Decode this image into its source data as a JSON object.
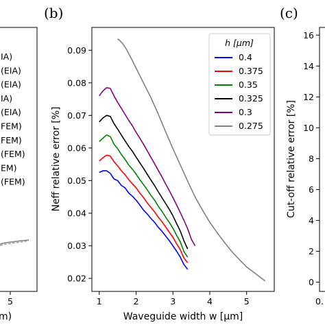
{
  "panels": {
    "left_label": "",
    "center_label": "(b)",
    "right_label": "(c)"
  },
  "left_fragment": {
    "legend_entries": [
      "IA)",
      "(EIA)",
      "(EIA)",
      "IA)",
      "(EIA)",
      "FEM)",
      "FEM)",
      "(FEM)",
      "EM)",
      "(FEM)"
    ],
    "xticks": [
      "5"
    ],
    "xlabel_fragment": "m)"
  },
  "right_fragment": {
    "ylabel": "Cut-off relative error [%]",
    "yticks": [
      "0",
      "2",
      "4",
      "6",
      "8",
      "10",
      "12",
      "14",
      "16"
    ],
    "xtick_fragment": "0."
  },
  "chart_data": {
    "type": "line",
    "title": "",
    "xlabel": "Waveguide width w [μm]",
    "ylabel": "Neff relative error [%]",
    "xlim": [
      0.8,
      5.75
    ],
    "ylim": [
      0.016,
      0.097
    ],
    "xticks": [
      1,
      2,
      3,
      4,
      5
    ],
    "yticks": [
      0.02,
      0.03,
      0.04,
      0.05,
      0.06,
      0.07,
      0.08,
      0.09
    ],
    "legend_title": "h [μm]",
    "legend_position": "top-right",
    "series": [
      {
        "name": "0.4",
        "color": "#0000ff",
        "x": [
          1.0,
          1.1,
          1.2,
          1.3,
          1.4,
          1.5,
          1.6,
          1.7,
          1.8,
          1.9,
          2.0,
          2.1,
          2.2,
          2.3,
          2.4,
          2.5,
          2.6,
          2.7,
          2.8,
          2.9,
          3.0,
          3.1,
          3.2,
          3.3,
          3.4
        ],
        "y": [
          0.0525,
          0.053,
          0.053,
          0.0522,
          0.0505,
          0.05,
          0.0485,
          0.0478,
          0.0462,
          0.0452,
          0.044,
          0.0425,
          0.041,
          0.0398,
          0.0384,
          0.0372,
          0.0357,
          0.0345,
          0.033,
          0.0316,
          0.03,
          0.0283,
          0.0265,
          0.0242,
          0.0228
        ]
      },
      {
        "name": "0.375",
        "color": "#ff0000",
        "x": [
          1.0,
          1.1,
          1.2,
          1.3,
          1.4,
          1.5,
          1.6,
          1.7,
          1.8,
          1.9,
          2.0,
          2.1,
          2.2,
          2.3,
          2.4,
          2.5,
          2.6,
          2.7,
          2.8,
          2.9,
          3.0,
          3.1,
          3.2,
          3.3,
          3.4
        ],
        "y": [
          0.056,
          0.057,
          0.0578,
          0.0575,
          0.0558,
          0.0545,
          0.053,
          0.0518,
          0.0503,
          0.049,
          0.0478,
          0.0462,
          0.0448,
          0.0432,
          0.0418,
          0.0404,
          0.0388,
          0.0374,
          0.0358,
          0.0342,
          0.0326,
          0.0306,
          0.0288,
          0.0262,
          0.0248
        ]
      },
      {
        "name": "0.35",
        "color": "#008000",
        "x": [
          1.0,
          1.1,
          1.2,
          1.3,
          1.4,
          1.5,
          1.6,
          1.7,
          1.8,
          1.9,
          2.0,
          2.1,
          2.2,
          2.3,
          2.4,
          2.5,
          2.6,
          2.7,
          2.8,
          2.9,
          3.0,
          3.1,
          3.2,
          3.3,
          3.4
        ],
        "y": [
          0.062,
          0.063,
          0.064,
          0.0635,
          0.0612,
          0.0598,
          0.058,
          0.0565,
          0.0548,
          0.0535,
          0.052,
          0.0503,
          0.0488,
          0.0472,
          0.0455,
          0.044,
          0.0422,
          0.0406,
          0.0388,
          0.0372,
          0.0354,
          0.0332,
          0.0312,
          0.0282,
          0.0265
        ]
      },
      {
        "name": "0.325",
        "color": "#000000",
        "x": [
          1.0,
          1.1,
          1.2,
          1.3,
          1.4,
          1.5,
          1.6,
          1.7,
          1.8,
          1.9,
          2.0,
          2.1,
          2.2,
          2.3,
          2.4,
          2.5,
          2.6,
          2.7,
          2.8,
          2.9,
          3.0,
          3.1,
          3.2,
          3.3,
          3.4
        ],
        "y": [
          0.068,
          0.0692,
          0.07,
          0.0697,
          0.0675,
          0.0658,
          0.064,
          0.0622,
          0.0605,
          0.059,
          0.0572,
          0.0555,
          0.0538,
          0.052,
          0.0502,
          0.0485,
          0.0466,
          0.0448,
          0.043,
          0.0412,
          0.0392,
          0.0368,
          0.0345,
          0.0315,
          0.029
        ]
      },
      {
        "name": "0.3",
        "color": "#800080",
        "x": [
          1.0,
          1.1,
          1.2,
          1.3,
          1.4,
          1.5,
          1.6,
          1.7,
          1.8,
          1.9,
          2.0,
          2.1,
          2.2,
          2.3,
          2.4,
          2.5,
          2.6,
          2.7,
          2.8,
          2.9,
          3.0,
          3.1,
          3.2,
          3.3,
          3.4,
          3.5,
          3.6
        ],
        "y": [
          0.076,
          0.0775,
          0.0785,
          0.0783,
          0.076,
          0.074,
          0.0722,
          0.0703,
          0.0685,
          0.0668,
          0.0648,
          0.063,
          0.0612,
          0.0592,
          0.0572,
          0.0552,
          0.0532,
          0.0512,
          0.049,
          0.047,
          0.0448,
          0.0425,
          0.0402,
          0.0378,
          0.0352,
          0.032,
          0.03
        ]
      },
      {
        "name": "0.275",
        "color": "#808080",
        "x": [
          1.5,
          1.6,
          1.7,
          1.8,
          1.9,
          2.0,
          2.2,
          2.4,
          2.6,
          2.8,
          3.0,
          3.2,
          3.4,
          3.6,
          3.8,
          4.0,
          4.2,
          4.4,
          4.6,
          4.8,
          5.0,
          5.2,
          5.5
        ],
        "y": [
          0.0935,
          0.0925,
          0.091,
          0.089,
          0.0868,
          0.0845,
          0.08,
          0.0755,
          0.0705,
          0.065,
          0.0598,
          0.0548,
          0.0498,
          0.045,
          0.041,
          0.0372,
          0.034,
          0.031,
          0.0282,
          0.0258,
          0.0235,
          0.0218,
          0.0192
        ]
      }
    ]
  }
}
